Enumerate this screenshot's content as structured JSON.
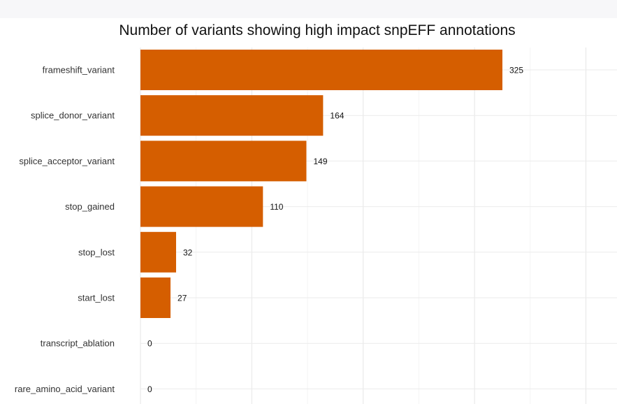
{
  "chart_data": {
    "type": "bar",
    "orientation": "horizontal",
    "title": "Number of variants showing high impact snpEFF annotations",
    "xlabel": "",
    "ylabel": "",
    "categories": [
      "frameshift_variant",
      "splice_donor_variant",
      "splice_acceptor_variant",
      "stop_gained",
      "stop_lost",
      "start_lost",
      "transcript_ablation",
      "rare_amino_acid_variant"
    ],
    "values": [
      325,
      164,
      149,
      110,
      32,
      27,
      0,
      0
    ],
    "xlim": [
      0,
      410
    ],
    "grid": true,
    "legend": "none",
    "bar_color": "#d55e00"
  }
}
